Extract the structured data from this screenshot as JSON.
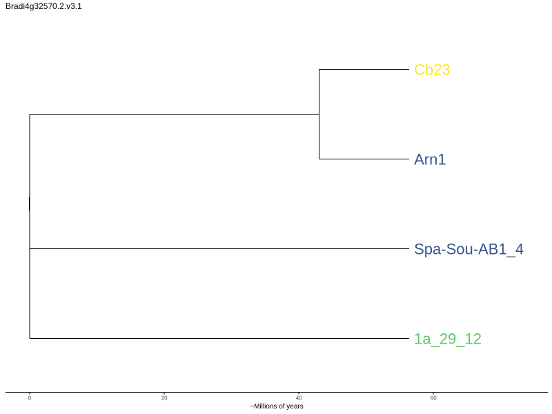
{
  "title": "Bradi4g32570.2.v3.1",
  "chart_data": {
    "type": "dendrogram",
    "xlabel": "~Millions of years",
    "xlim": [
      -3.6,
      77
    ],
    "xticks": [
      0,
      20,
      40,
      60
    ],
    "tree": {
      "name": "root",
      "height": 0,
      "children": [
        {
          "name": "node-cb23-arn1",
          "height": 0,
          "children": [
            {
              "name": "node-inner",
              "height": 43,
              "children": [
                {
                  "name": "Cb23",
                  "height": 56.4,
                  "color": "#fde725"
                },
                {
                  "name": "Arn1",
                  "height": 56.4,
                  "color": "#3b528b"
                }
              ]
            }
          ]
        },
        {
          "name": "node-lower",
          "height": 0,
          "children": [
            {
              "name": "Spa-Sou-AB1_4",
              "height": 56.4,
              "color": "#3b528b"
            },
            {
              "name": "1a_29_12",
              "height": 56.4,
              "color": "#5ec962"
            }
          ]
        }
      ]
    },
    "tips": [
      {
        "label": "Cb23",
        "color": "#fde725"
      },
      {
        "label": "Arn1",
        "color": "#3b528b"
      },
      {
        "label": "Spa-Sou-AB1_4",
        "color": "#3b528b"
      },
      {
        "label": "1a_29_12",
        "color": "#5ec962"
      }
    ]
  }
}
